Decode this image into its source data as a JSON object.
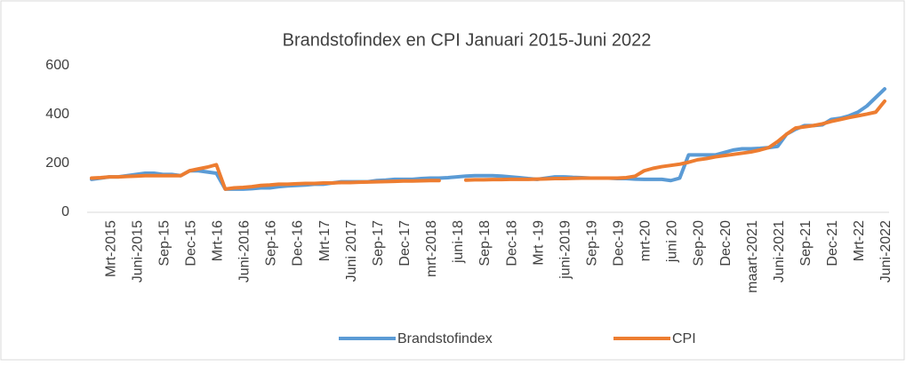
{
  "chart_data": {
    "type": "line",
    "title": "Brandstofindex en CPI Januari 2015-Juni 2022",
    "categories": [
      null,
      null,
      "Mrt-2015",
      null,
      null,
      "Juni-2015",
      null,
      null,
      "Sep-15",
      null,
      null,
      "Dec-15",
      null,
      null,
      "Mrt-16",
      null,
      null,
      "Juni-2016",
      null,
      null,
      "Sep-16",
      null,
      null,
      "Dec-16",
      null,
      null,
      "Mrt-17",
      null,
      null,
      "Juni 2017",
      null,
      null,
      "Sep-17",
      null,
      null,
      "Dec-17",
      null,
      null,
      "mrt-2018",
      null,
      null,
      "juni-18",
      null,
      null,
      "Sep-18",
      null,
      null,
      "Dec-18",
      null,
      null,
      "Mrt -19",
      null,
      null,
      "juni-2019",
      null,
      null,
      "Sep-19",
      null,
      null,
      "Dec-19",
      null,
      null,
      "mrt-20",
      null,
      null,
      "juni 20",
      null,
      null,
      "Sep-20",
      null,
      null,
      "Dec-20",
      null,
      null,
      "maart-2021",
      null,
      null,
      "Juni-2021",
      null,
      null,
      "Sep-21",
      null,
      null,
      "Dec-21",
      null,
      null,
      "Mrt-22",
      null,
      null,
      "Juni-2022"
    ],
    "series": [
      {
        "name": "Brandstofindex",
        "color": "#5b9bd5",
        "values": [
          135,
          140,
          145,
          145,
          150,
          155,
          160,
          160,
          155,
          155,
          150,
          170,
          170,
          165,
          160,
          95,
          95,
          95,
          97,
          100,
          100,
          105,
          108,
          110,
          112,
          115,
          115,
          120,
          125,
          125,
          125,
          125,
          130,
          132,
          135,
          135,
          135,
          138,
          140,
          140,
          142,
          145,
          148,
          150,
          150,
          150,
          148,
          145,
          142,
          138,
          135,
          140,
          145,
          145,
          143,
          142,
          140,
          140,
          140,
          138,
          138,
          136,
          135,
          135,
          135,
          130,
          140,
          235,
          235,
          235,
          235,
          245,
          255,
          260,
          260,
          262,
          265,
          270,
          320,
          340,
          355,
          355,
          358,
          380,
          385,
          395,
          410,
          435,
          470,
          505
        ]
      },
      {
        "name": "CPI",
        "color": "#ed7d31",
        "values": [
          140,
          142,
          145,
          145,
          147,
          148,
          150,
          150,
          150,
          150,
          150,
          170,
          178,
          185,
          195,
          95,
          100,
          102,
          105,
          110,
          112,
          115,
          115,
          117,
          118,
          118,
          120,
          120,
          122,
          122,
          123,
          124,
          125,
          126,
          127,
          128,
          128,
          129,
          130,
          130,
          null,
          null,
          132,
          133,
          133,
          134,
          134,
          135,
          135,
          135,
          136,
          137,
          138,
          138,
          139,
          140,
          140,
          140,
          140,
          140,
          142,
          148,
          170,
          180,
          187,
          192,
          197,
          205,
          215,
          220,
          227,
          232,
          237,
          242,
          247,
          255,
          265,
          290,
          320,
          345,
          350,
          355,
          362,
          372,
          380,
          388,
          395,
          402,
          410,
          455
        ]
      }
    ],
    "ylim": [
      0,
      600
    ],
    "yticks": [
      0,
      200,
      400,
      600
    ],
    "grid": false,
    "legend": "bottom"
  }
}
